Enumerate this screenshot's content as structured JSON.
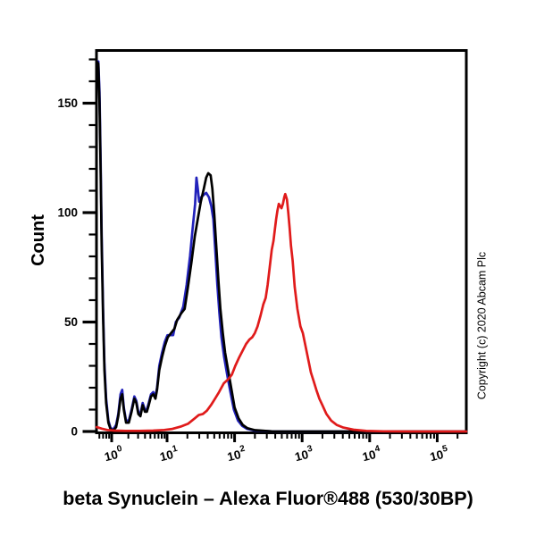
{
  "figure": {
    "title": "beta Synuclein – Alexa Fluor®488 (530/30BP)",
    "y_axis_label": "Count",
    "copyright": "Copyright (c) 2020 Abcam Plc",
    "background": "#ffffff",
    "frame_color": "#000000"
  },
  "chart_data": {
    "type": "line",
    "subtype": "flow-cytometry-histogram",
    "title": "beta Synuclein – Alexa Fluor®488 (530/30BP)",
    "xlabel": "beta Synuclein – Alexa Fluor®488 (530/30BP)",
    "ylabel": "Count",
    "x_scale": "log10",
    "x_tick_base": "10",
    "x_ticks_exponents": [
      0,
      1,
      2,
      3,
      4,
      5
    ],
    "xlim_log": [
      -0.274,
      5.431
    ],
    "y_ticks": [
      0,
      50,
      100,
      150
    ],
    "y_minor_step": 10,
    "ylim": [
      0,
      174
    ],
    "grid": false,
    "legend": null,
    "series": [
      {
        "name": "blue",
        "color": "#2222bb",
        "points_log10x_count": [
          [
            -0.27,
            169
          ],
          [
            -0.24,
            169
          ],
          [
            -0.22,
            155
          ],
          [
            -0.2,
            125
          ],
          [
            -0.18,
            90
          ],
          [
            -0.155,
            56
          ],
          [
            -0.13,
            31
          ],
          [
            -0.1,
            15
          ],
          [
            -0.06,
            5
          ],
          [
            -0.02,
            1.5
          ],
          [
            0.03,
            1
          ],
          [
            0.08,
            3
          ],
          [
            0.12,
            8
          ],
          [
            0.16,
            17
          ],
          [
            0.19,
            19
          ],
          [
            0.22,
            11
          ],
          [
            0.26,
            5
          ],
          [
            0.31,
            5
          ],
          [
            0.36,
            10
          ],
          [
            0.41,
            16
          ],
          [
            0.445,
            14
          ],
          [
            0.48,
            9
          ],
          [
            0.52,
            8
          ],
          [
            0.56,
            13
          ],
          [
            0.6,
            10
          ],
          [
            0.635,
            10
          ],
          [
            0.67,
            13
          ],
          [
            0.71,
            17
          ],
          [
            0.75,
            18
          ],
          [
            0.79,
            16
          ],
          [
            0.82,
            20
          ],
          [
            0.86,
            30
          ],
          [
            0.91,
            36
          ],
          [
            0.96,
            41
          ],
          [
            1.005,
            44
          ],
          [
            1.05,
            44
          ],
          [
            1.09,
            44
          ],
          [
            1.13,
            50
          ],
          [
            1.18,
            52
          ],
          [
            1.24,
            57
          ],
          [
            1.29,
            67
          ],
          [
            1.34,
            80
          ],
          [
            1.38,
            93
          ],
          [
            1.415,
            104
          ],
          [
            1.435,
            116
          ],
          [
            1.455,
            111
          ],
          [
            1.475,
            105
          ],
          [
            1.505,
            107
          ],
          [
            1.54,
            108
          ],
          [
            1.58,
            109
          ],
          [
            1.62,
            107
          ],
          [
            1.655,
            103
          ],
          [
            1.685,
            97
          ],
          [
            1.715,
            82
          ],
          [
            1.745,
            67
          ],
          [
            1.775,
            54
          ],
          [
            1.805,
            43
          ],
          [
            1.845,
            34
          ],
          [
            1.895,
            25
          ],
          [
            1.945,
            17
          ],
          [
            1.99,
            10
          ],
          [
            2.05,
            5
          ],
          [
            2.115,
            2.5
          ],
          [
            2.185,
            1.2
          ],
          [
            2.3,
            0.4
          ],
          [
            2.55,
            0.1
          ],
          [
            3.0,
            0
          ],
          [
            5.43,
            0
          ]
        ]
      },
      {
        "name": "black",
        "color": "#000000",
        "points_log10x_count": [
          [
            -0.27,
            169
          ],
          [
            -0.24,
            168
          ],
          [
            -0.22,
            150
          ],
          [
            -0.2,
            120
          ],
          [
            -0.18,
            85
          ],
          [
            -0.155,
            52
          ],
          [
            -0.13,
            28
          ],
          [
            -0.1,
            13
          ],
          [
            -0.06,
            4
          ],
          [
            -0.02,
            1
          ],
          [
            0.03,
            0.5
          ],
          [
            0.08,
            2
          ],
          [
            0.12,
            7
          ],
          [
            0.16,
            15
          ],
          [
            0.19,
            17
          ],
          [
            0.22,
            10
          ],
          [
            0.26,
            4
          ],
          [
            0.31,
            4
          ],
          [
            0.36,
            9
          ],
          [
            0.41,
            15
          ],
          [
            0.445,
            13
          ],
          [
            0.48,
            8
          ],
          [
            0.52,
            7
          ],
          [
            0.56,
            12
          ],
          [
            0.6,
            9
          ],
          [
            0.635,
            9
          ],
          [
            0.67,
            12
          ],
          [
            0.71,
            16
          ],
          [
            0.75,
            17
          ],
          [
            0.79,
            15
          ],
          [
            0.82,
            19
          ],
          [
            0.86,
            28
          ],
          [
            0.91,
            34
          ],
          [
            0.96,
            39
          ],
          [
            1.01,
            43
          ],
          [
            1.06,
            45
          ],
          [
            1.11,
            47
          ],
          [
            1.15,
            51
          ],
          [
            1.21,
            54
          ],
          [
            1.26,
            56
          ],
          [
            1.31,
            66
          ],
          [
            1.36,
            77
          ],
          [
            1.41,
            89
          ],
          [
            1.46,
            98
          ],
          [
            1.5,
            105
          ],
          [
            1.545,
            111
          ],
          [
            1.58,
            116
          ],
          [
            1.61,
            118
          ],
          [
            1.645,
            117
          ],
          [
            1.67,
            111
          ],
          [
            1.7,
            99
          ],
          [
            1.73,
            84
          ],
          [
            1.76,
            69
          ],
          [
            1.79,
            56
          ],
          [
            1.825,
            45
          ],
          [
            1.86,
            36
          ],
          [
            1.91,
            27
          ],
          [
            1.955,
            19
          ],
          [
            2.0,
            11
          ],
          [
            2.06,
            6
          ],
          [
            2.12,
            3
          ],
          [
            2.19,
            1.5
          ],
          [
            2.3,
            0.6
          ],
          [
            2.55,
            0.1
          ],
          [
            3.0,
            0
          ],
          [
            5.43,
            0
          ]
        ]
      },
      {
        "name": "red",
        "color": "#e01b1b",
        "points_log10x_count": [
          [
            -0.27,
            2
          ],
          [
            -0.18,
            1.3
          ],
          [
            -0.08,
            0.7
          ],
          [
            0.05,
            0.4
          ],
          [
            0.25,
            0.3
          ],
          [
            0.5,
            0.3
          ],
          [
            0.75,
            0.4
          ],
          [
            0.95,
            0.7
          ],
          [
            1.08,
            1.2
          ],
          [
            1.2,
            2.2
          ],
          [
            1.31,
            3.5
          ],
          [
            1.41,
            6
          ],
          [
            1.47,
            7.5
          ],
          [
            1.53,
            8
          ],
          [
            1.59,
            9.5
          ],
          [
            1.65,
            12
          ],
          [
            1.71,
            15
          ],
          [
            1.77,
            18
          ],
          [
            1.84,
            22
          ],
          [
            1.91,
            24
          ],
          [
            1.96,
            26
          ],
          [
            2.01,
            30
          ],
          [
            2.07,
            34
          ],
          [
            2.12,
            37
          ],
          [
            2.17,
            40
          ],
          [
            2.22,
            42
          ],
          [
            2.26,
            43
          ],
          [
            2.3,
            45
          ],
          [
            2.34,
            48
          ],
          [
            2.385,
            53
          ],
          [
            2.425,
            58
          ],
          [
            2.46,
            61
          ],
          [
            2.49,
            67
          ],
          [
            2.52,
            75
          ],
          [
            2.55,
            83
          ],
          [
            2.575,
            87
          ],
          [
            2.595,
            92
          ],
          [
            2.615,
            97
          ],
          [
            2.635,
            101
          ],
          [
            2.655,
            104
          ],
          [
            2.675,
            103
          ],
          [
            2.695,
            102
          ],
          [
            2.715,
            104
          ],
          [
            2.735,
            107
          ],
          [
            2.75,
            108.5
          ],
          [
            2.775,
            106
          ],
          [
            2.795,
            100
          ],
          [
            2.815,
            93
          ],
          [
            2.835,
            85
          ],
          [
            2.86,
            78
          ],
          [
            2.89,
            66
          ],
          [
            2.93,
            56
          ],
          [
            2.975,
            48
          ],
          [
            3.01,
            45
          ],
          [
            3.05,
            39
          ],
          [
            3.09,
            33
          ],
          [
            3.13,
            27
          ],
          [
            3.17,
            23
          ],
          [
            3.21,
            19
          ],
          [
            3.255,
            15
          ],
          [
            3.3,
            12
          ],
          [
            3.36,
            8
          ],
          [
            3.43,
            5
          ],
          [
            3.51,
            3
          ],
          [
            3.61,
            1.8
          ],
          [
            3.76,
            0.8
          ],
          [
            3.95,
            0.3
          ],
          [
            4.2,
            0.1
          ],
          [
            4.6,
            0
          ],
          [
            5.43,
            0
          ]
        ]
      }
    ]
  }
}
